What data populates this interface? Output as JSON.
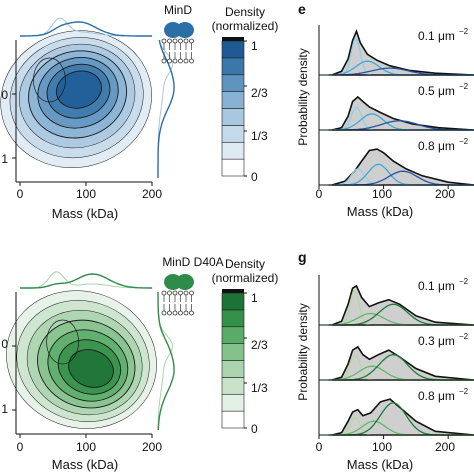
{
  "chart_data": [
    {
      "id": "top-left",
      "type": "contour-density",
      "protein_label": "MinD",
      "xlabel": "Mass (kDa)",
      "xticks": [
        "0",
        "100",
        "200"
      ],
      "ytick_labels": [
        "0",
        "1"
      ],
      "xlim": [
        0,
        200
      ],
      "colorbar": {
        "title_line1": "Density",
        "title_line2": "(normalized)",
        "ticks": [
          "1",
          "2/3",
          "1/3",
          "0"
        ],
        "levels": 8,
        "colors": [
          "#ffffff",
          "#dde9f3",
          "#c4d9ea",
          "#a8c7e0",
          "#86b1d3",
          "#5f94c0",
          "#3b77ab",
          "#1f5a95"
        ]
      },
      "density_peak": {
        "mass_kDa": 90,
        "y_level": 0
      },
      "accent": "#2a6fa6"
    },
    {
      "id": "top-right",
      "panel_letter": "e",
      "type": "area-stack",
      "ylabel": "Probability density",
      "xlabel": "Mass (kDa)",
      "xticks": [
        "0",
        "100",
        "200"
      ],
      "xlim": [
        0,
        240
      ],
      "rows": [
        {
          "label": "0.1 μm",
          "exponent": "−2",
          "total": {
            "x": [
              20,
              35,
              45,
              52,
              58,
              64,
              75,
              90,
              110,
              140,
              180,
              240
            ],
            "y": [
              0.0,
              0.08,
              0.35,
              0.75,
              0.95,
              0.7,
              0.45,
              0.32,
              0.2,
              0.1,
              0.04,
              0.0
            ]
          },
          "components": [
            {
              "mean": 57,
              "sd": 7,
              "amp": 0.8,
              "color": "#8fd0e8"
            },
            {
              "mean": 75,
              "sd": 18,
              "amp": 0.3,
              "color": "#3fa7d6"
            },
            {
              "mean": 110,
              "sd": 28,
              "amp": 0.15,
              "color": "#2455a5"
            }
          ]
        },
        {
          "label": "0.5 μm",
          "exponent": "−2",
          "total": {
            "x": [
              20,
              35,
              45,
              52,
              60,
              68,
              78,
              95,
              115,
              145,
              185,
              240
            ],
            "y": [
              0.0,
              0.05,
              0.3,
              0.62,
              0.72,
              0.62,
              0.5,
              0.38,
              0.25,
              0.13,
              0.05,
              0.0
            ]
          },
          "components": [
            {
              "mean": 58,
              "sd": 8,
              "amp": 0.5,
              "color": "#8fd0e8"
            },
            {
              "mean": 82,
              "sd": 18,
              "amp": 0.35,
              "color": "#3fa7d6"
            },
            {
              "mean": 125,
              "sd": 28,
              "amp": 0.2,
              "color": "#2455a5"
            }
          ]
        },
        {
          "label": "0.8 μm",
          "exponent": "−2",
          "total": {
            "x": [
              20,
              40,
              55,
              65,
              78,
              90,
              100,
              115,
              135,
              160,
              200,
              240
            ],
            "y": [
              0.0,
              0.08,
              0.3,
              0.5,
              0.75,
              0.78,
              0.7,
              0.52,
              0.35,
              0.2,
              0.06,
              0.0
            ]
          },
          "components": [
            {
              "mean": 60,
              "sd": 10,
              "amp": 0.35,
              "color": "#8fd0e8"
            },
            {
              "mean": 92,
              "sd": 16,
              "amp": 0.45,
              "color": "#3fa7d6"
            },
            {
              "mean": 130,
              "sd": 22,
              "amp": 0.3,
              "color": "#2455a5"
            }
          ]
        }
      ]
    },
    {
      "id": "bottom-left",
      "type": "contour-density",
      "protein_label": "MinD D40A",
      "xlabel": "Mass (kDa)",
      "xticks": [
        "0",
        "100",
        "200"
      ],
      "ytick_labels": [
        "0",
        "1"
      ],
      "xlim": [
        0,
        200
      ],
      "colorbar": {
        "title_line1": "Density",
        "title_line2": "(normalized)",
        "ticks": [
          "1",
          "2/3",
          "1/3",
          "0"
        ],
        "levels": 8,
        "colors": [
          "#ffffff",
          "#e3f0e4",
          "#c9e3cb",
          "#a9d4ad",
          "#84c28b",
          "#5aab68",
          "#35904a",
          "#1d7236"
        ]
      },
      "density_peak": {
        "mass_kDa": 110,
        "y_level": 0
      },
      "accent": "#2e8b4a"
    },
    {
      "id": "bottom-right",
      "panel_letter": "g",
      "type": "area-stack",
      "ylabel": "Probability density",
      "xlabel": "Mass (kDa)",
      "xticks": [
        "0",
        "100",
        "200"
      ],
      "xlim": [
        0,
        240
      ],
      "rows": [
        {
          "label": "0.1 μm",
          "exponent": "−2",
          "total": {
            "x": [
              20,
              35,
              45,
              52,
              58,
              66,
              78,
              92,
              108,
              125,
              150,
              180,
              240
            ],
            "y": [
              0.0,
              0.08,
              0.45,
              0.8,
              0.85,
              0.6,
              0.4,
              0.48,
              0.55,
              0.45,
              0.2,
              0.06,
              0.0
            ]
          },
          "components": [
            {
              "mean": 55,
              "sd": 7,
              "amp": 0.75,
              "color": "#b7d99a"
            },
            {
              "mean": 80,
              "sd": 20,
              "amp": 0.25,
              "color": "#62b86a"
            },
            {
              "mean": 115,
              "sd": 22,
              "amp": 0.45,
              "color": "#1e7b3a"
            }
          ]
        },
        {
          "label": "0.3 μm",
          "exponent": "−2",
          "total": {
            "x": [
              20,
              35,
              45,
              52,
              60,
              68,
              78,
              92,
              108,
              125,
              150,
              180,
              240
            ],
            "y": [
              0.0,
              0.06,
              0.35,
              0.65,
              0.72,
              0.55,
              0.45,
              0.55,
              0.65,
              0.5,
              0.25,
              0.08,
              0.0
            ]
          },
          "components": [
            {
              "mean": 56,
              "sd": 8,
              "amp": 0.55,
              "color": "#b7d99a"
            },
            {
              "mean": 82,
              "sd": 20,
              "amp": 0.3,
              "color": "#62b86a"
            },
            {
              "mean": 115,
              "sd": 22,
              "amp": 0.55,
              "color": "#1e7b3a"
            }
          ]
        },
        {
          "label": "0.8 μm",
          "exponent": "−2",
          "total": {
            "x": [
              20,
              35,
              45,
              52,
              60,
              68,
              80,
              95,
              110,
              125,
              150,
              180,
              240
            ],
            "y": [
              0.0,
              0.05,
              0.3,
              0.5,
              0.55,
              0.42,
              0.48,
              0.72,
              0.78,
              0.6,
              0.3,
              0.08,
              0.0
            ]
          },
          "components": [
            {
              "mean": 56,
              "sd": 8,
              "amp": 0.38,
              "color": "#b7d99a"
            },
            {
              "mean": 85,
              "sd": 18,
              "amp": 0.3,
              "color": "#62b86a"
            },
            {
              "mean": 115,
              "sd": 20,
              "amp": 0.7,
              "color": "#1e7b3a"
            }
          ]
        }
      ]
    }
  ]
}
